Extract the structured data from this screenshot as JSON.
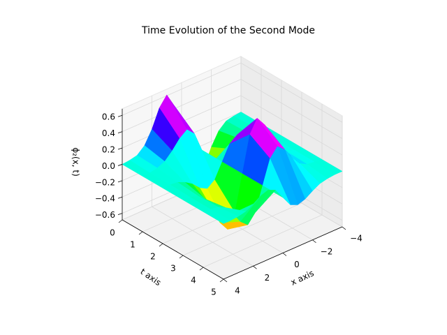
{
  "chart_data": {
    "type": "surface3d",
    "title": "Time Evolution of the Second Mode",
    "x_label": "x axis",
    "t_label": "t axis",
    "z_label": "ϕ₂(x, t)",
    "colormap": "hsv",
    "x": [
      -4,
      -3.5,
      -3,
      -2.5,
      -2,
      -1.5,
      -1,
      -0.5,
      0,
      0.5,
      1,
      1.5,
      2,
      2.5,
      3,
      3.5,
      4
    ],
    "t": [
      0,
      1,
      2,
      3,
      4,
      5
    ],
    "z": [
      [
        0,
        -0.01,
        -0.03,
        -0.11,
        -0.27,
        -0.49,
        -0.61,
        -0.44,
        0,
        0.44,
        0.61,
        0.49,
        0.27,
        0.11,
        0.03,
        0.01,
        0
      ],
      [
        0,
        0,
        -0.02,
        -0.06,
        -0.15,
        -0.26,
        -0.33,
        -0.24,
        0,
        0.24,
        0.33,
        0.26,
        0.15,
        0.06,
        0.02,
        0,
        0
      ],
      [
        0,
        0,
        0.01,
        0.05,
        0.11,
        0.2,
        0.25,
        0.18,
        0,
        -0.18,
        -0.25,
        -0.2,
        -0.11,
        -0.05,
        -0.01,
        0,
        0
      ],
      [
        0,
        0.01,
        0.03,
        0.11,
        0.27,
        0.48,
        0.6,
        0.44,
        0,
        -0.44,
        -0.6,
        -0.48,
        -0.27,
        -0.11,
        -0.03,
        -0.01,
        0
      ],
      [
        0,
        0.01,
        0.02,
        0.07,
        0.18,
        0.32,
        0.4,
        0.29,
        0,
        -0.29,
        -0.4,
        -0.32,
        -0.18,
        -0.07,
        -0.02,
        -0.01,
        0
      ],
      [
        0,
        0,
        -0.01,
        -0.03,
        -0.08,
        -0.14,
        -0.17,
        -0.13,
        0,
        0.13,
        0.17,
        0.14,
        0.08,
        0.03,
        0.01,
        0,
        0
      ]
    ],
    "xlim": [
      -4,
      4
    ],
    "tlim": [
      0,
      5
    ],
    "zlim": [
      -0.68,
      0.68
    ],
    "xticks": [
      {
        "value": -4,
        "label": "−4"
      },
      {
        "value": -2,
        "label": "−2"
      },
      0,
      2,
      4
    ],
    "tticks": [
      0,
      1,
      2,
      3,
      4,
      5
    ],
    "zticks": [
      {
        "value": -0.6,
        "label": "−0.6"
      },
      {
        "value": -0.4,
        "label": "−0.4"
      },
      {
        "value": -0.2,
        "label": "−0.2"
      },
      {
        "value": 0,
        "label": "0.0"
      },
      0.2,
      0.4,
      0.6
    ],
    "grid": true
  }
}
